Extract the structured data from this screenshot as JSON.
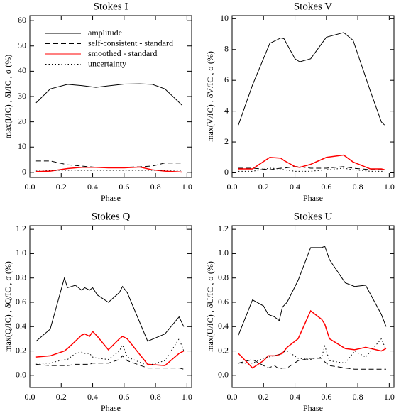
{
  "chart_data": [
    {
      "type": "line",
      "title": "Stokes I",
      "xlabel": "Phase",
      "ylabel": "max(I/IC) , δI/IC , σ (%)",
      "xlim": [
        0,
        1.03
      ],
      "ylim": [
        -2,
        62
      ],
      "xticks": [
        {
          "value": 0,
          "label": "0.0"
        },
        {
          "value": 0.2,
          "label": "0.2"
        },
        {
          "value": 0.4,
          "label": "0.4"
        },
        {
          "value": 0.6,
          "label": "0.6"
        },
        {
          "value": 0.8,
          "label": "0.8"
        },
        {
          "value": 1,
          "label": "1.0"
        }
      ],
      "yticks": [
        0,
        10,
        20,
        30,
        40,
        50,
        60
      ],
      "legend": "upper left",
      "x": [
        0.04,
        0.13,
        0.24,
        0.33,
        0.42,
        0.5,
        0.6,
        0.7,
        0.78,
        0.86,
        0.97
      ],
      "series": [
        {
          "name": "amplitude",
          "color": "#000000",
          "linestyle": "solid",
          "values": [
            27.5,
            33,
            34.8,
            34.3,
            33.6,
            34.2,
            34.9,
            35,
            34.8,
            33,
            26.5
          ]
        },
        {
          "name": "self-consistent - standard",
          "color": "#000000",
          "linestyle": "dashed",
          "values": [
            4.5,
            4.5,
            3,
            2.5,
            2,
            2,
            2,
            2.2,
            2.5,
            3.7,
            3.7
          ]
        },
        {
          "name": "smoothed - standard",
          "color": "#ff0000",
          "linestyle": "solid",
          "values": [
            0.3,
            0.5,
            1.5,
            2,
            2,
            1.8,
            1.8,
            2.1,
            1,
            0.5,
            0.1
          ]
        },
        {
          "name": "uncertainty",
          "color": "#000000",
          "linestyle": "dotted",
          "values": [
            0.8,
            0.8,
            0.8,
            0.8,
            0.8,
            0.8,
            0.8,
            0.8,
            0.8,
            0.8,
            0.8
          ]
        }
      ]
    },
    {
      "type": "line",
      "title": "Stokes V",
      "xlabel": "Phase",
      "ylabel": "max(V/IC) , δV/IC , σ (%)",
      "xlim": [
        0,
        1.03
      ],
      "ylim": [
        -0.3,
        10.2
      ],
      "xticks": [
        {
          "value": 0,
          "label": "0.0"
        },
        {
          "value": 0.2,
          "label": "0.2"
        },
        {
          "value": 0.4,
          "label": "0.4"
        },
        {
          "value": 0.6,
          "label": "0.6"
        },
        {
          "value": 0.8,
          "label": "0.8"
        },
        {
          "value": 1,
          "label": "1.0"
        }
      ],
      "yticks": [
        0,
        2,
        4,
        6,
        8,
        10
      ],
      "x": [
        0.04,
        0.13,
        0.24,
        0.31,
        0.33,
        0.4,
        0.43,
        0.5,
        0.6,
        0.71,
        0.77,
        0.88,
        0.95,
        0.97
      ],
      "series": [
        {
          "color": "#000000",
          "linestyle": "solid",
          "values": [
            3.1,
            5.7,
            8.4,
            8.75,
            8.7,
            7.4,
            7.2,
            7.4,
            8.8,
            9.1,
            8.6,
            5.3,
            3.3,
            3.1
          ]
        },
        {
          "color": "#000000",
          "linestyle": "dashed",
          "values": [
            0.3,
            0.3,
            0.2,
            0.3,
            0.3,
            0.4,
            0.4,
            0.3,
            0.3,
            0.4,
            0.3,
            0.2,
            0.2,
            0.2
          ]
        },
        {
          "color": "#ff0000",
          "linestyle": "solid",
          "values": [
            0.25,
            0.25,
            1,
            0.95,
            0.8,
            0.4,
            0.35,
            0.55,
            1,
            1.15,
            0.7,
            0.25,
            0.25,
            0.2
          ]
        },
        {
          "color": "#000000",
          "linestyle": "dotted",
          "values": [
            0.1,
            0.1,
            0.3,
            0.25,
            0.2,
            0.1,
            0.1,
            0.1,
            0.2,
            0.3,
            0.2,
            0.1,
            0.1,
            0.1
          ]
        }
      ]
    },
    {
      "type": "line",
      "title": "Stokes Q",
      "xlabel": "Phase",
      "ylabel": "max(Q/IC) , δQ/IC , σ (%)",
      "xlim": [
        0,
        1.03
      ],
      "ylim": [
        -0.1,
        1.23
      ],
      "xticks": [
        {
          "value": 0,
          "label": "0.0"
        },
        {
          "value": 0.2,
          "label": "0.2"
        },
        {
          "value": 0.4,
          "label": "0.4"
        },
        {
          "value": 0.6,
          "label": "0.6"
        },
        {
          "value": 0.8,
          "label": "0.8"
        },
        {
          "value": 1,
          "label": "1.0"
        }
      ],
      "yticks": [
        {
          "value": 0,
          "label": "0.0"
        },
        0.2,
        0.4,
        0.6,
        0.8,
        {
          "value": 1,
          "label": "1.0"
        },
        1.2
      ],
      "x": [
        0.04,
        0.13,
        0.22,
        0.24,
        0.29,
        0.33,
        0.35,
        0.38,
        0.4,
        0.43,
        0.5,
        0.57,
        0.59,
        0.62,
        0.75,
        0.86,
        0.95,
        0.98
      ],
      "series": [
        {
          "color": "#000000",
          "linestyle": "solid",
          "values": [
            0.28,
            0.38,
            0.8,
            0.72,
            0.74,
            0.7,
            0.72,
            0.7,
            0.72,
            0.66,
            0.6,
            0.68,
            0.73,
            0.68,
            0.28,
            0.34,
            0.48,
            0.4
          ]
        },
        {
          "color": "#000000",
          "linestyle": "dashed",
          "values": [
            0.09,
            0.08,
            0.08,
            0.08,
            0.09,
            0.09,
            0.09,
            0.09,
            0.1,
            0.1,
            0.1,
            0.13,
            0.16,
            0.12,
            0.06,
            0.06,
            0.06,
            0.05
          ]
        },
        {
          "color": "#ff0000",
          "linestyle": "solid",
          "values": [
            0.15,
            0.16,
            0.2,
            0.22,
            0.28,
            0.33,
            0.34,
            0.32,
            0.36,
            0.32,
            0.21,
            0.3,
            0.32,
            0.3,
            0.09,
            0.08,
            0.18,
            0.2
          ]
        },
        {
          "color": "#000000",
          "linestyle": "dotted",
          "values": [
            0.1,
            0.1,
            0.13,
            0.13,
            0.18,
            0.19,
            0.18,
            0.18,
            0.15,
            0.14,
            0.13,
            0.2,
            0.25,
            0.15,
            0.08,
            0.12,
            0.3,
            0.2
          ]
        }
      ]
    },
    {
      "type": "line",
      "title": "Stokes U",
      "xlabel": "Phase",
      "ylabel": "max(U/IC) , δU/IC , σ (%)",
      "xlim": [
        0,
        1.03
      ],
      "ylim": [
        -0.1,
        1.23
      ],
      "xticks": [
        {
          "value": 0,
          "label": "0.0"
        },
        {
          "value": 0.2,
          "label": "0.2"
        },
        {
          "value": 0.4,
          "label": "0.4"
        },
        {
          "value": 0.6,
          "label": "0.6"
        },
        {
          "value": 0.8,
          "label": "0.8"
        },
        {
          "value": 1,
          "label": "1.0"
        }
      ],
      "yticks": [
        {
          "value": 0,
          "label": "0.0"
        },
        0.2,
        0.4,
        0.6,
        0.8,
        {
          "value": 1,
          "label": "1.0"
        },
        1.2
      ],
      "x": [
        0.04,
        0.13,
        0.2,
        0.23,
        0.27,
        0.3,
        0.32,
        0.35,
        0.42,
        0.5,
        0.57,
        0.59,
        0.62,
        0.72,
        0.78,
        0.85,
        0.95,
        0.98
      ],
      "series": [
        {
          "color": "#000000",
          "linestyle": "solid",
          "values": [
            0.33,
            0.62,
            0.57,
            0.5,
            0.48,
            0.45,
            0.56,
            0.6,
            0.78,
            1.05,
            1.05,
            1.06,
            0.95,
            0.76,
            0.73,
            0.74,
            0.5,
            0.4
          ]
        },
        {
          "color": "#000000",
          "linestyle": "dashed",
          "values": [
            0.1,
            0.13,
            0.08,
            0.06,
            0.08,
            0.05,
            0.06,
            0.06,
            0.12,
            0.14,
            0.14,
            0.11,
            0.08,
            0.06,
            0.05,
            0.05,
            0.05,
            0.05
          ]
        },
        {
          "color": "#ff0000",
          "linestyle": "solid",
          "values": [
            0.18,
            0.06,
            0.12,
            0.16,
            0.16,
            0.17,
            0.18,
            0.23,
            0.3,
            0.53,
            0.46,
            0.42,
            0.3,
            0.22,
            0.21,
            0.23,
            0.2,
            0.22
          ]
        },
        {
          "color": "#000000",
          "linestyle": "dotted",
          "values": [
            0.1,
            0.1,
            0.14,
            0.15,
            0.16,
            0.17,
            0.19,
            0.2,
            0.14,
            0.13,
            0.15,
            0.24,
            0.12,
            0.1,
            0.2,
            0.15,
            0.3,
            0.21
          ]
        }
      ]
    }
  ]
}
